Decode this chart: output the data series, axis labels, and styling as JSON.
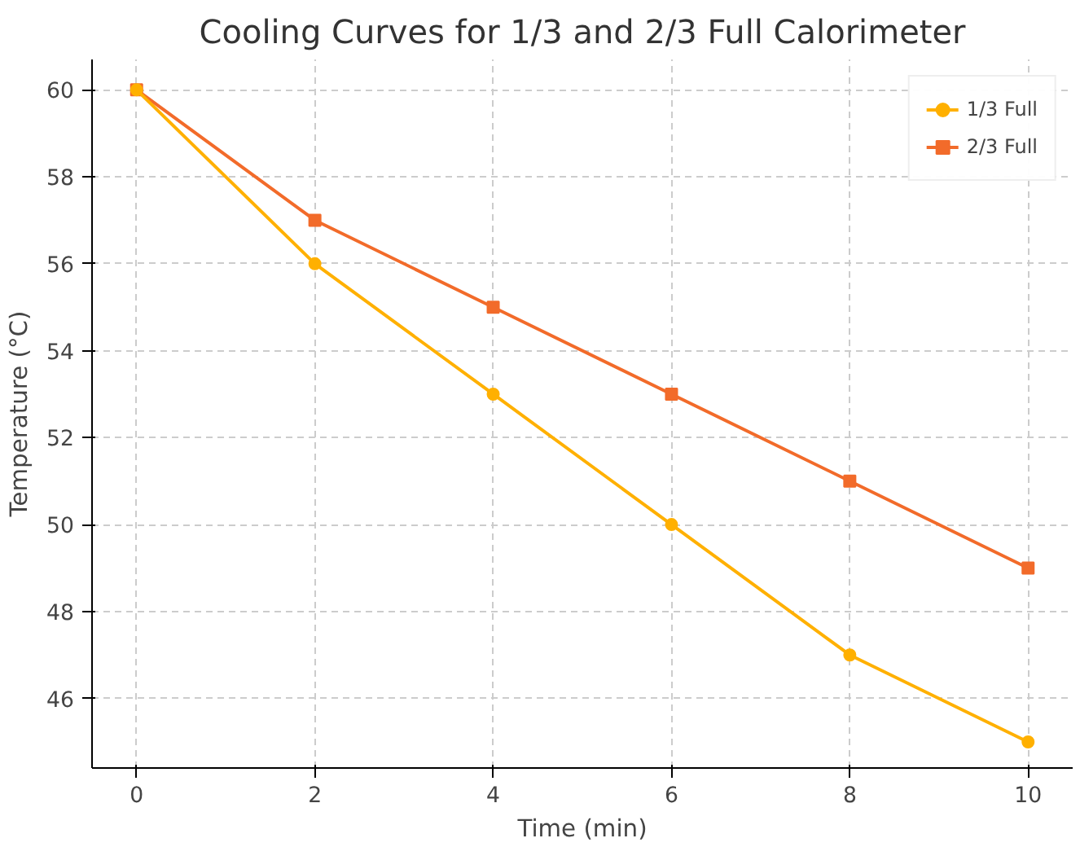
{
  "chart_data": {
    "type": "line",
    "title": "Cooling Curves for 1/3 and 2/3 Full Calorimeter",
    "xlabel": "Time (min)",
    "ylabel": "Temperature (°C)",
    "x": [
      0,
      2,
      4,
      6,
      8,
      10
    ],
    "series": [
      {
        "name": "1/3 Full",
        "color": "#ffb000",
        "marker": "circle",
        "values": [
          60,
          56,
          53,
          50,
          47,
          45
        ]
      },
      {
        "name": "2/3 Full",
        "color": "#f26b2a",
        "marker": "square",
        "values": [
          60,
          57,
          55,
          53,
          51,
          49
        ]
      }
    ],
    "xlim": [
      -0.5,
      10.5
    ],
    "ylim": [
      44.4,
      60.7
    ],
    "xticks": [
      0,
      2,
      4,
      6,
      8,
      10
    ],
    "yticks": [
      46,
      48,
      50,
      52,
      54,
      56,
      58,
      60
    ],
    "grid": true,
    "legend": "top right",
    "line_style": "solid"
  }
}
